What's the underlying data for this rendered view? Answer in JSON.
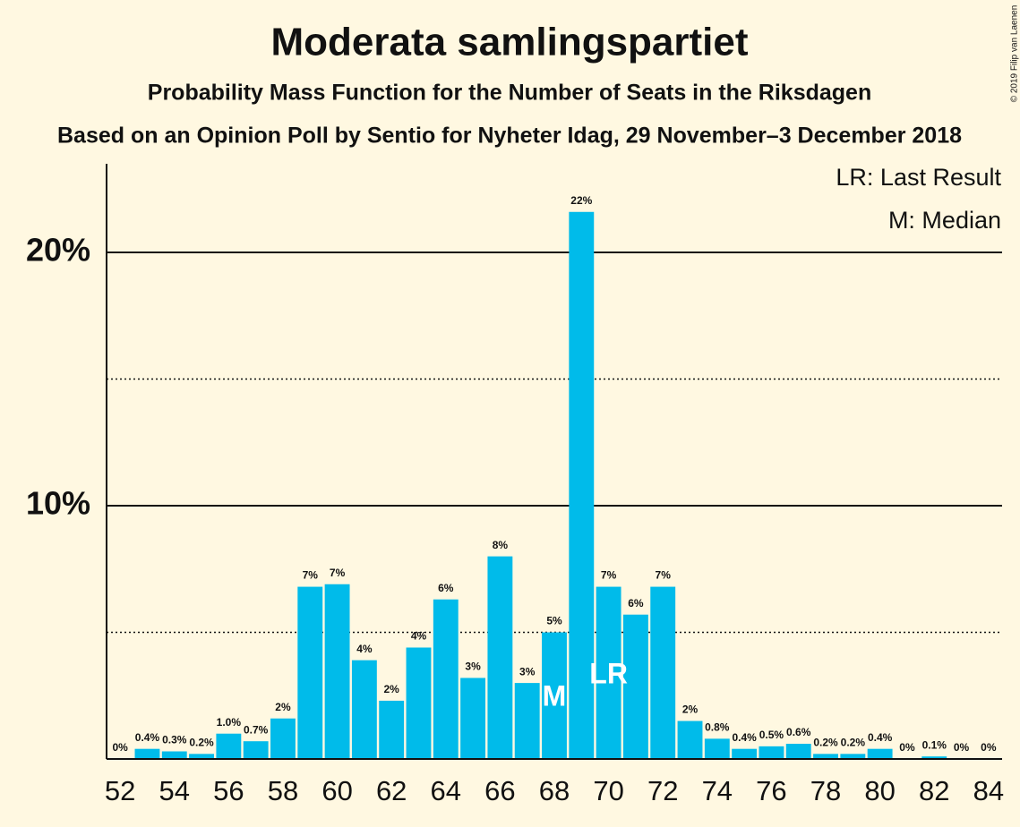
{
  "chart_data": {
    "type": "bar",
    "title": "Moderata samlingspartiet",
    "subtitle": "Probability Mass Function for the Number of Seats in the Riksdagen",
    "subtitle2": "Based on an Opinion Poll by Sentio for Nyheter Idag, 29 November–3 December 2018",
    "copyright": "© 2019 Filip van Laenen",
    "legend": [
      "LR: Last Result",
      "M: Median"
    ],
    "annotations": [
      {
        "x": 68,
        "text": "M"
      },
      {
        "x": 70,
        "text": "LR"
      }
    ],
    "x": [
      52,
      53,
      54,
      55,
      56,
      57,
      58,
      59,
      60,
      61,
      62,
      63,
      64,
      65,
      66,
      67,
      68,
      69,
      70,
      71,
      72,
      73,
      74,
      75,
      76,
      77,
      78,
      79,
      80,
      81,
      82,
      83,
      84
    ],
    "values": [
      0,
      0.4,
      0.3,
      0.2,
      1.0,
      0.7,
      1.6,
      6.8,
      6.9,
      3.9,
      2.3,
      4.4,
      6.3,
      3.2,
      8.0,
      3.0,
      5.0,
      21.6,
      6.8,
      5.7,
      6.8,
      1.5,
      0.8,
      0.4,
      0.5,
      0.6,
      0.2,
      0.2,
      0.4,
      0,
      0.1,
      0,
      0
    ],
    "value_labels": [
      "0%",
      "0.4%",
      "0.3%",
      "0.2%",
      "1.0%",
      "0.7%",
      "2%",
      "7%",
      "7%",
      "4%",
      "2%",
      "4%",
      "6%",
      "3%",
      "8%",
      "3%",
      "5%",
      "22%",
      "7%",
      "6%",
      "7%",
      "2%",
      "0.8%",
      "0.4%",
      "0.5%",
      "0.6%",
      "0.2%",
      "0.2%",
      "0.4%",
      "0%",
      "0.1%",
      "0%",
      "0%"
    ],
    "color": "#00bbea",
    "xlim": [
      51.5,
      84.5
    ],
    "xticks": [
      52,
      54,
      56,
      58,
      60,
      62,
      64,
      66,
      68,
      70,
      72,
      74,
      76,
      78,
      80,
      82,
      84
    ],
    "ylim": [
      0,
      23.5
    ],
    "yticks": [
      {
        "value": 10,
        "label": "10%"
      },
      {
        "value": 20,
        "label": "20%"
      }
    ],
    "minor_grid": [
      5,
      15
    ],
    "grid": true
  }
}
